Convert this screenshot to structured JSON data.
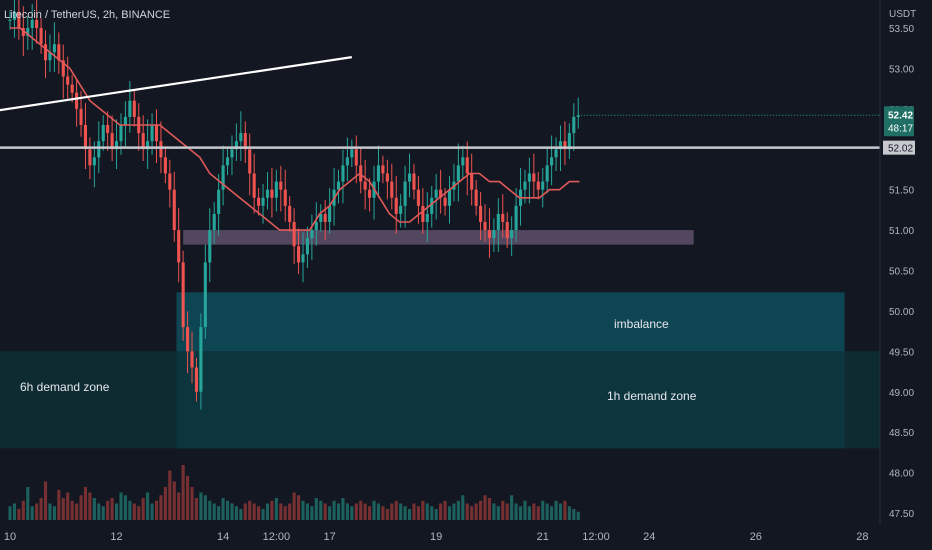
{
  "header": {
    "symbol": "Litecoin / TetherUS, 2h, BINANCE",
    "unit": "USDT"
  },
  "price_scale": {
    "last_price": "52.42",
    "countdown": "48:17",
    "level_price": "52.02"
  },
  "zones": [
    {
      "label": "6h demand zone",
      "color": "#0d2d33"
    },
    {
      "label": "imbalance",
      "color": "#0e4a58"
    },
    {
      "label": "1h demand zone",
      "color": "#0c363f"
    }
  ],
  "chart_data": {
    "type": "candlestick",
    "symbol": "Litecoin / TetherUS",
    "interval": "2h",
    "exchange": "BINANCE",
    "y_unit": "USDT",
    "y_ticks": [
      47.5,
      48.0,
      48.5,
      49.0,
      49.5,
      50.0,
      50.5,
      51.0,
      51.5,
      52.0,
      52.5,
      53.0,
      53.5
    ],
    "y_tick_labels": [
      "47.50",
      "48.00",
      "48.50",
      "49.00",
      "49.50",
      "50.00",
      "50.50",
      "51.00",
      "51.50",
      "52.00",
      "52.50",
      "53.00",
      "53.50"
    ],
    "ylim": [
      47.4,
      53.6
    ],
    "x_tick_labels": [
      "10",
      "12",
      "14",
      "12:00",
      "17",
      "19",
      "21",
      "12:00",
      "24",
      "26",
      "28"
    ],
    "x_tick_pos": [
      0,
      24,
      48,
      60,
      72,
      96,
      120,
      132,
      144,
      168,
      192
    ],
    "x_range": [
      -4,
      206
    ],
    "last_candle_index": 128,
    "closes": [
      53.6,
      53.7,
      53.5,
      53.4,
      53.5,
      53.6,
      53.5,
      53.3,
      53.1,
      53.2,
      53.3,
      53.1,
      52.9,
      52.8,
      52.7,
      52.5,
      52.3,
      52.0,
      51.8,
      51.9,
      52.1,
      52.3,
      52.2,
      52.0,
      52.1,
      52.3,
      52.4,
      52.6,
      52.4,
      52.2,
      52.0,
      52.1,
      52.3,
      52.1,
      51.9,
      51.7,
      51.5,
      51.0,
      50.6,
      49.8,
      49.5,
      49.3,
      49.0,
      49.8,
      50.6,
      51.0,
      51.2,
      51.5,
      51.8,
      51.9,
      52.0,
      52.1,
      52.2,
      52.0,
      51.7,
      51.4,
      51.3,
      51.4,
      51.5,
      51.4,
      51.6,
      51.5,
      51.3,
      51.1,
      50.8,
      50.6,
      50.7,
      50.9,
      51.0,
      51.1,
      51.2,
      51.1,
      51.3,
      51.5,
      51.6,
      51.8,
      51.9,
      52.0,
      51.8,
      51.6,
      51.5,
      51.4,
      51.6,
      51.8,
      51.7,
      51.6,
      51.4,
      51.2,
      51.3,
      51.6,
      51.7,
      51.5,
      51.3,
      51.1,
      51.2,
      51.4,
      51.5,
      51.4,
      51.3,
      51.5,
      51.6,
      51.8,
      51.9,
      51.7,
      51.5,
      51.3,
      51.1,
      51.0,
      50.9,
      51.0,
      51.2,
      51.1,
      50.9,
      51.0,
      51.3,
      51.5,
      51.6,
      51.7,
      51.6,
      51.5,
      51.6,
      51.8,
      51.9,
      52.0,
      52.1,
      52.0,
      52.2,
      52.4,
      52.42
    ],
    "ma": [
      53.5,
      53.5,
      53.4,
      53.3,
      53.2,
      53.1,
      53.0,
      52.8,
      52.6,
      52.5,
      52.4,
      52.3,
      52.3,
      52.3,
      52.3,
      52.3,
      52.2,
      52.1,
      52.0,
      51.9,
      51.7,
      51.6,
      51.5,
      51.4,
      51.3,
      51.2,
      51.1,
      51.0,
      51.0,
      51.0,
      51.0,
      51.2,
      51.3,
      51.5,
      51.6,
      51.7,
      51.6,
      51.4,
      51.2,
      51.1,
      51.1,
      51.2,
      51.3,
      51.4,
      51.5,
      51.6,
      51.7,
      51.7,
      51.6,
      51.6,
      51.5,
      51.4,
      51.4,
      51.4,
      51.5,
      51.5,
      51.6,
      51.6
    ],
    "ma_start_index": 0,
    "ma_step": 2.25,
    "volume_relative": [
      0.25,
      0.3,
      0.2,
      0.35,
      0.6,
      0.25,
      0.3,
      0.4,
      0.7,
      0.3,
      0.25,
      0.55,
      0.4,
      0.5,
      0.35,
      0.3,
      0.45,
      0.6,
      0.5,
      0.4,
      0.3,
      0.25,
      0.35,
      0.4,
      0.3,
      0.5,
      0.45,
      0.35,
      0.3,
      0.25,
      0.4,
      0.5,
      0.3,
      0.35,
      0.45,
      0.6,
      0.9,
      0.7,
      0.5,
      1.0,
      0.8,
      0.6,
      0.4,
      0.5,
      0.45,
      0.35,
      0.3,
      0.25,
      0.4,
      0.35,
      0.3,
      0.25,
      0.2,
      0.3,
      0.35,
      0.3,
      0.25,
      0.2,
      0.3,
      0.35,
      0.4,
      0.3,
      0.25,
      0.3,
      0.5,
      0.45,
      0.35,
      0.3,
      0.25,
      0.4,
      0.35,
      0.3,
      0.25,
      0.35,
      0.3,
      0.4,
      0.3,
      0.25,
      0.3,
      0.35,
      0.3,
      0.25,
      0.35,
      0.3,
      0.25,
      0.2,
      0.3,
      0.35,
      0.3,
      0.25,
      0.2,
      0.3,
      0.25,
      0.35,
      0.3,
      0.25,
      0.2,
      0.3,
      0.35,
      0.25,
      0.3,
      0.35,
      0.45,
      0.3,
      0.25,
      0.3,
      0.35,
      0.45,
      0.4,
      0.3,
      0.25,
      0.35,
      0.3,
      0.45,
      0.3,
      0.25,
      0.35,
      0.25,
      0.3,
      0.25,
      0.35,
      0.3,
      0.25,
      0.35,
      0.3,
      0.35,
      0.25,
      0.2,
      0.15
    ],
    "horizontal_level": 52.02,
    "trendline": {
      "x1": -4,
      "y1": 52.47,
      "x2": 77,
      "y2": 53.14
    },
    "supply_box": {
      "x_from": 39,
      "x_to": 154,
      "y_from": 50.82,
      "y_to": 51.0,
      "color": "#5a4c66"
    },
    "zones": [
      {
        "name": "6h demand zone",
        "x_from": -4,
        "x_to": 206,
        "y_from": 48.3,
        "y_to": 49.5
      },
      {
        "name": "imbalance",
        "x_from": 37.5,
        "x_to": 188,
        "y_from": 49.5,
        "y_to": 50.23
      },
      {
        "name": "1h demand zone",
        "x_from": 37.5,
        "x_to": 188,
        "y_from": 48.3,
        "y_to": 49.5
      }
    ],
    "up_color": "#26a69a",
    "down_color": "#ef5350",
    "ma_color": "#e05a5a",
    "grid": false
  }
}
